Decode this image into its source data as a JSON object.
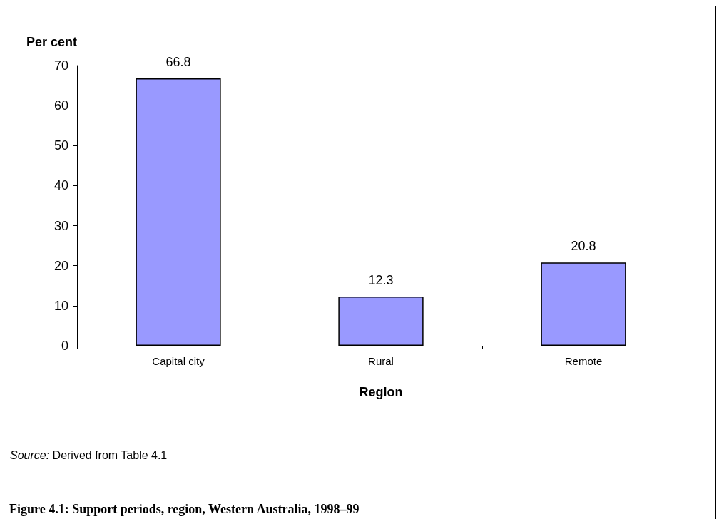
{
  "chart_data": {
    "type": "bar",
    "title": "Figure 4.1: Support periods, region, Western Australia, 1998–99",
    "xlabel": "Region",
    "ylabel": "Per cent",
    "categories": [
      "Capital city",
      "Rural",
      "Remote"
    ],
    "values": [
      66.8,
      12.3,
      20.8
    ],
    "color": "#9999ff",
    "ylim": [
      0,
      70
    ],
    "yticks": [
      0,
      10,
      20,
      30,
      40,
      50,
      60,
      70
    ],
    "data_labels": true,
    "grid": false,
    "annotations": [
      "Source: Derived from Table 4.1"
    ]
  }
}
